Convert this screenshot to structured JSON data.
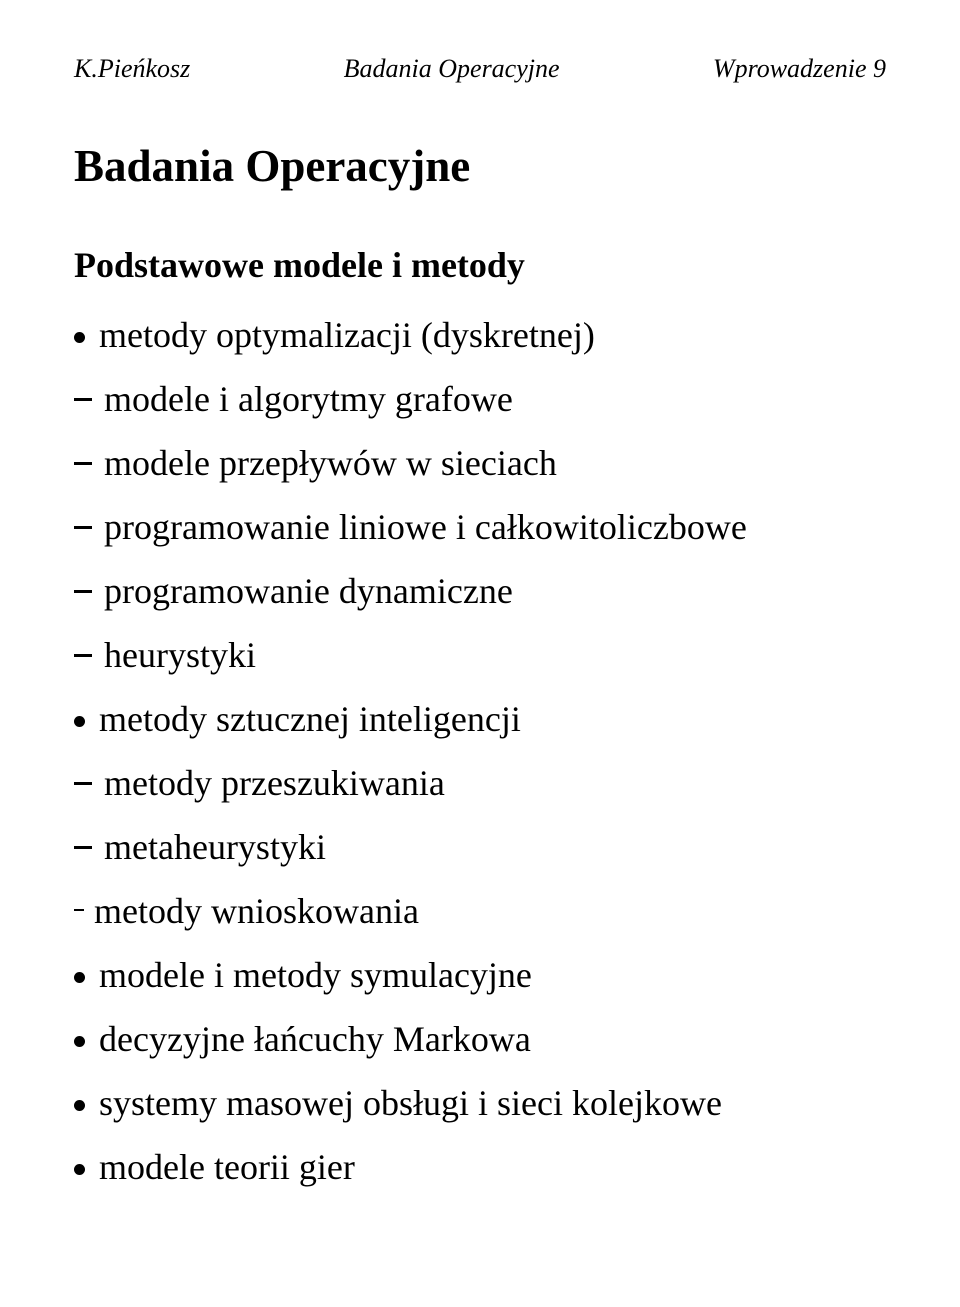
{
  "header": {
    "left": "K.Pieńkosz",
    "center": "Badania Operacyjne",
    "right": "Wprowadzenie 9"
  },
  "title": "Badania Operacyjne",
  "subtitle": "Podstawowe modele i metody",
  "items": [
    {
      "level": 0,
      "text": "metody optymalizacji (dyskretnej)"
    },
    {
      "level": 1,
      "text": "modele i algorytmy grafowe"
    },
    {
      "level": 1,
      "text": "modele przepływów w sieciach"
    },
    {
      "level": 1,
      "text": "programowanie liniowe i całkowitoliczbowe"
    },
    {
      "level": 1,
      "text": "programowanie dynamiczne"
    },
    {
      "level": 1,
      "text": "heurystyki"
    },
    {
      "level": 0,
      "text": "metody sztucznej inteligencji"
    },
    {
      "level": 1,
      "text": "metody przeszukiwania"
    },
    {
      "level": 1,
      "text": "metaheurystyki"
    },
    {
      "level": 2,
      "text": "metody wnioskowania"
    },
    {
      "level": 0,
      "text": "modele i metody symulacyjne"
    },
    {
      "level": 0,
      "text": "decyzyjne łańcuchy Markowa"
    },
    {
      "level": 0,
      "text": "systemy masowej obsługi i sieci kolejkowe"
    },
    {
      "level": 0,
      "text": "modele teorii gier"
    }
  ]
}
